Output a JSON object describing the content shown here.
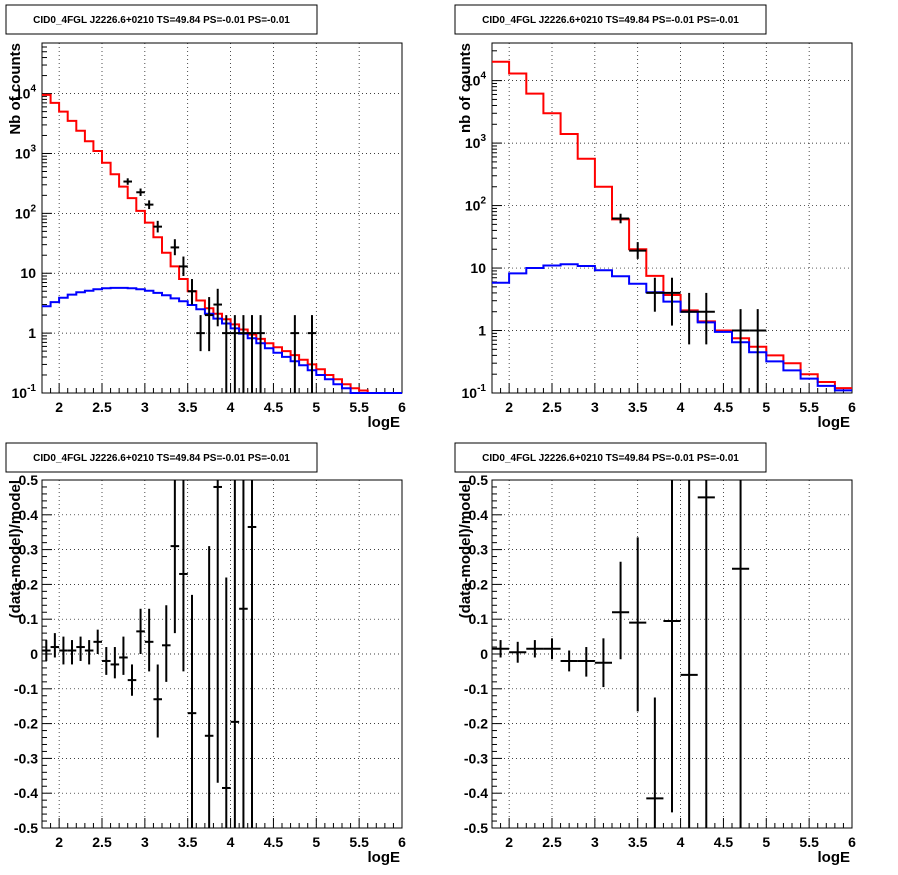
{
  "chart_data": [
    {
      "type": "line",
      "title": "CID0_4FGL J2226.6+0210 TS=49.84 PS=-0.01 PS=-0.01",
      "xlabel": "logE",
      "ylabel": "Nb of counts",
      "xscale": "linear",
      "yscale": "log",
      "xlim": [
        1.8,
        6
      ],
      "ylim": [
        0.1,
        70000
      ],
      "grid": true,
      "xticks": [
        "2",
        "2.5",
        "3",
        "3.5",
        "4",
        "4.5",
        "5",
        "5.5",
        "6"
      ],
      "yticks": [
        "10^-1",
        "1",
        "10",
        "10^2",
        "10^3",
        "10^4"
      ],
      "bin_edges": [
        1.8,
        1.9,
        2.0,
        2.1,
        2.2,
        2.3,
        2.4,
        2.5,
        2.6,
        2.7,
        2.8,
        2.9,
        3.0,
        3.1,
        3.2,
        3.3,
        3.4,
        3.5,
        3.6,
        3.7,
        3.8,
        3.9,
        4.0,
        4.1,
        4.2,
        4.3,
        4.4,
        4.5,
        4.6,
        4.7,
        4.8,
        4.9,
        5.0,
        5.1,
        5.2,
        5.3,
        5.4,
        5.5,
        5.6,
        5.7,
        5.8,
        5.9,
        6.0
      ],
      "series": [
        {
          "color": "#ff0000",
          "style": "step",
          "values": [
            9500,
            7000,
            5000,
            3500,
            2400,
            1600,
            1100,
            700,
            450,
            280,
            180,
            110,
            70,
            40,
            22,
            13,
            8,
            5,
            3.5,
            2.6,
            2.1,
            1.7,
            1.4,
            1.15,
            0.95,
            0.8,
            0.68,
            0.58,
            0.5,
            0.43,
            0.36,
            0.3,
            0.25,
            0.2,
            0.17,
            0.14,
            0.12,
            0.11,
            0.1,
            0.1,
            0.1,
            0.1
          ]
        },
        {
          "color": "#0000ff",
          "style": "step",
          "values": [
            2.8,
            3.3,
            3.9,
            4.4,
            4.8,
            5.1,
            5.4,
            5.6,
            5.7,
            5.7,
            5.6,
            5.4,
            5.1,
            4.7,
            4.3,
            3.8,
            3.4,
            2.95,
            2.5,
            2.1,
            1.75,
            1.45,
            1.2,
            0.98,
            0.82,
            0.68,
            0.56,
            0.47,
            0.4,
            0.34,
            0.29,
            0.24,
            0.2,
            0.17,
            0.14,
            0.12,
            0.1,
            0.1,
            0.1,
            0.1,
            0.1,
            0.1
          ]
        }
      ],
      "points": [
        {
          "x": 2.8,
          "xerr": 0.05,
          "y": 340,
          "ylo": 300,
          "yhi": 385
        },
        {
          "x": 2.95,
          "xerr": 0.05,
          "y": 225,
          "ylo": 195,
          "yhi": 260
        },
        {
          "x": 3.05,
          "xerr": 0.05,
          "y": 140,
          "ylo": 118,
          "yhi": 165
        },
        {
          "x": 3.15,
          "xerr": 0.05,
          "y": 60,
          "ylo": 48,
          "yhi": 75
        },
        {
          "x": 3.35,
          "xerr": 0.05,
          "y": 27,
          "ylo": 20,
          "yhi": 37
        },
        {
          "x": 3.45,
          "xerr": 0.05,
          "y": 13,
          "ylo": 9,
          "yhi": 19
        },
        {
          "x": 3.55,
          "xerr": 0.05,
          "y": 5,
          "ylo": 3,
          "yhi": 8
        },
        {
          "x": 3.65,
          "xerr": 0.05,
          "y": 1,
          "ylo": 0.5,
          "yhi": 2
        },
        {
          "x": 3.75,
          "xerr": 0.05,
          "y": 2,
          "ylo": 0.5,
          "yhi": 4
        },
        {
          "x": 3.85,
          "xerr": 0.05,
          "y": 3,
          "ylo": 1.3,
          "yhi": 5.5
        },
        {
          "x": 3.95,
          "xerr": 0.05,
          "y": 1,
          "ylo": 0.1,
          "yhi": 2
        },
        {
          "x": 4.05,
          "xerr": 0.05,
          "y": 1,
          "ylo": 0.1,
          "yhi": 2
        },
        {
          "x": 4.15,
          "xerr": 0.05,
          "y": 1,
          "ylo": 0.1,
          "yhi": 2
        },
        {
          "x": 4.25,
          "xerr": 0.05,
          "y": 1,
          "ylo": 0.1,
          "yhi": 2
        },
        {
          "x": 4.35,
          "xerr": 0.05,
          "y": 1,
          "ylo": 0.1,
          "yhi": 2
        },
        {
          "x": 4.75,
          "xerr": 0.05,
          "y": 1,
          "ylo": 0.1,
          "yhi": 2
        },
        {
          "x": 4.95,
          "xerr": 0.05,
          "y": 1,
          "ylo": 0.1,
          "yhi": 2
        }
      ]
    },
    {
      "type": "line",
      "title": "CID0_4FGL J2226.6+0210 TS=49.84 PS=-0.01 PS=-0.01",
      "xlabel": "logE",
      "ylabel": "nb of counts",
      "xscale": "linear",
      "yscale": "log",
      "xlim": [
        1.8,
        6
      ],
      "ylim": [
        0.1,
        40000
      ],
      "grid": true,
      "xticks": [
        "2",
        "2.5",
        "3",
        "3.5",
        "4",
        "4.5",
        "5",
        "5.5",
        "6"
      ],
      "yticks": [
        "10^-1",
        "1",
        "10",
        "10^2",
        "10^3",
        "10^4"
      ],
      "bin_edges": [
        1.8,
        2.0,
        2.2,
        2.4,
        2.6,
        2.8,
        3.0,
        3.2,
        3.4,
        3.6,
        3.8,
        4.0,
        4.2,
        4.4,
        4.6,
        4.8,
        5.0,
        5.2,
        5.4,
        5.6,
        5.8,
        6.0
      ],
      "series": [
        {
          "color": "#ff0000",
          "style": "step",
          "values": [
            20000,
            13000,
            6200,
            3000,
            1400,
            560,
            200,
            60,
            20,
            7.5,
            3.7,
            2.1,
            1.4,
            1.0,
            0.75,
            0.55,
            0.4,
            0.3,
            0.2,
            0.15,
            0.12
          ]
        },
        {
          "color": "#0000ff",
          "style": "step",
          "values": [
            5.8,
            8.2,
            10,
            11,
            11.5,
            10.8,
            9.2,
            7.4,
            5.6,
            4.1,
            2.9,
            2.0,
            1.35,
            0.95,
            0.65,
            0.45,
            0.32,
            0.23,
            0.17,
            0.13,
            0.11
          ]
        }
      ],
      "points": [
        {
          "x": 3.3,
          "xerr": 0.1,
          "y": 62,
          "ylo": 52,
          "yhi": 74
        },
        {
          "x": 3.5,
          "xerr": 0.1,
          "y": 19,
          "ylo": 14,
          "yhi": 26
        },
        {
          "x": 3.7,
          "xerr": 0.1,
          "y": 4,
          "ylo": 2,
          "yhi": 7
        },
        {
          "x": 3.9,
          "xerr": 0.1,
          "y": 4,
          "ylo": 1.2,
          "yhi": 7
        },
        {
          "x": 4.1,
          "xerr": 0.1,
          "y": 2,
          "ylo": 0.6,
          "yhi": 4
        },
        {
          "x": 4.3,
          "xerr": 0.1,
          "y": 2,
          "ylo": 0.6,
          "yhi": 4
        },
        {
          "x": 4.7,
          "xerr": 0.1,
          "y": 1,
          "ylo": 0.1,
          "yhi": 2.2
        },
        {
          "x": 4.9,
          "xerr": 0.1,
          "y": 1,
          "ylo": 0.1,
          "yhi": 2.2
        }
      ]
    },
    {
      "type": "scatter",
      "title": "CID0_4FGL J2226.6+0210 TS=49.84 PS=-0.01 PS=-0.01",
      "xlabel": "logE",
      "ylabel": "(data-model)/model",
      "xscale": "linear",
      "yscale": "linear",
      "xlim": [
        1.8,
        6
      ],
      "ylim": [
        -0.5,
        0.5
      ],
      "grid": true,
      "xticks": [
        "2",
        "2.5",
        "3",
        "3.5",
        "4",
        "4.5",
        "5",
        "5.5",
        "6"
      ],
      "yticks": [
        "-0.5",
        "-0.4",
        "-0.3",
        "-0.2",
        "-0.1",
        "0",
        "0.1",
        "0.2",
        "0.3",
        "0.4",
        "0.5"
      ],
      "points": [
        {
          "x": 1.85,
          "xerr": 0.05,
          "y": 0.01,
          "ylo": -0.02,
          "yhi": 0.04
        },
        {
          "x": 1.95,
          "xerr": 0.05,
          "y": 0.02,
          "ylo": -0.01,
          "yhi": 0.06
        },
        {
          "x": 2.05,
          "xerr": 0.05,
          "y": 0.01,
          "ylo": -0.03,
          "yhi": 0.05
        },
        {
          "x": 2.15,
          "xerr": 0.05,
          "y": 0.01,
          "ylo": -0.03,
          "yhi": 0.04
        },
        {
          "x": 2.25,
          "xerr": 0.05,
          "y": 0.02,
          "ylo": -0.02,
          "yhi": 0.05
        },
        {
          "x": 2.35,
          "xerr": 0.05,
          "y": 0.01,
          "ylo": -0.03,
          "yhi": 0.04
        },
        {
          "x": 2.45,
          "xerr": 0.05,
          "y": 0.035,
          "ylo": 0.0,
          "yhi": 0.07
        },
        {
          "x": 2.55,
          "xerr": 0.05,
          "y": -0.02,
          "ylo": -0.06,
          "yhi": 0.02
        },
        {
          "x": 2.65,
          "xerr": 0.05,
          "y": -0.03,
          "ylo": -0.07,
          "yhi": 0.02
        },
        {
          "x": 2.75,
          "xerr": 0.05,
          "y": -0.01,
          "ylo": -0.06,
          "yhi": 0.05
        },
        {
          "x": 2.85,
          "xerr": 0.05,
          "y": -0.075,
          "ylo": -0.12,
          "yhi": -0.03
        },
        {
          "x": 2.95,
          "xerr": 0.05,
          "y": 0.065,
          "ylo": 0.0,
          "yhi": 0.13
        },
        {
          "x": 3.05,
          "xerr": 0.05,
          "y": 0.035,
          "ylo": -0.05,
          "yhi": 0.13
        },
        {
          "x": 3.15,
          "xerr": 0.05,
          "y": -0.13,
          "ylo": -0.24,
          "yhi": -0.03
        },
        {
          "x": 3.25,
          "xerr": 0.05,
          "y": 0.025,
          "ylo": -0.08,
          "yhi": 0.14
        },
        {
          "x": 3.35,
          "xerr": 0.05,
          "y": 0.31,
          "ylo": 0.06,
          "yhi": 0.5
        },
        {
          "x": 3.45,
          "xerr": 0.05,
          "y": 0.23,
          "ylo": -0.05,
          "yhi": 0.5
        },
        {
          "x": 3.55,
          "xerr": 0.05,
          "y": -0.17,
          "ylo": -0.5,
          "yhi": 0.17
        },
        {
          "x": 3.75,
          "xerr": 0.05,
          "y": -0.235,
          "ylo": -0.5,
          "yhi": 0.31
        },
        {
          "x": 3.85,
          "xerr": 0.05,
          "y": 0.48,
          "ylo": -0.37,
          "yhi": 0.5
        },
        {
          "x": 3.95,
          "xerr": 0.05,
          "y": -0.385,
          "ylo": -0.5,
          "yhi": 0.22
        },
        {
          "x": 4.05,
          "xerr": 0.05,
          "y": -0.195,
          "ylo": -0.5,
          "yhi": 0.5
        },
        {
          "x": 4.15,
          "xerr": 0.05,
          "y": 0.13,
          "ylo": -0.5,
          "yhi": 0.5
        },
        {
          "x": 4.25,
          "xerr": 0.05,
          "y": 0.365,
          "ylo": -0.5,
          "yhi": 0.5
        }
      ]
    },
    {
      "type": "scatter",
      "title": "CID0_4FGL J2226.6+0210 TS=49.84 PS=-0.01 PS=-0.01",
      "xlabel": "logE",
      "ylabel": "(data-model)/model",
      "xscale": "linear",
      "yscale": "linear",
      "xlim": [
        1.8,
        6
      ],
      "ylim": [
        -0.5,
        0.5
      ],
      "grid": true,
      "xticks": [
        "2",
        "2.5",
        "3",
        "3.5",
        "4",
        "4.5",
        "5",
        "5.5",
        "6"
      ],
      "yticks": [
        "-0.5",
        "-0.4",
        "-0.3",
        "-0.2",
        "-0.1",
        "0",
        "0.1",
        "0.2",
        "0.3",
        "0.4",
        "0.5"
      ],
      "points": [
        {
          "x": 1.9,
          "xerr": 0.1,
          "y": 0.015,
          "ylo": -0.01,
          "yhi": 0.04
        },
        {
          "x": 2.1,
          "xerr": 0.1,
          "y": 0.005,
          "ylo": -0.025,
          "yhi": 0.035
        },
        {
          "x": 2.3,
          "xerr": 0.1,
          "y": 0.015,
          "ylo": -0.01,
          "yhi": 0.04
        },
        {
          "x": 2.5,
          "xerr": 0.1,
          "y": 0.015,
          "ylo": -0.015,
          "yhi": 0.045
        },
        {
          "x": 2.7,
          "xerr": 0.1,
          "y": -0.02,
          "ylo": -0.05,
          "yhi": 0.01
        },
        {
          "x": 2.9,
          "xerr": 0.1,
          "y": -0.02,
          "ylo": -0.065,
          "yhi": 0.02
        },
        {
          "x": 3.1,
          "xerr": 0.1,
          "y": -0.025,
          "ylo": -0.095,
          "yhi": 0.045
        },
        {
          "x": 3.3,
          "xerr": 0.1,
          "y": 0.12,
          "ylo": -0.015,
          "yhi": 0.265
        },
        {
          "x": 3.5,
          "xerr": 0.1,
          "y": 0.09,
          "ylo": -0.165,
          "yhi": 0.335
        },
        {
          "x": 3.7,
          "xerr": 0.1,
          "y": -0.415,
          "ylo": -0.5,
          "yhi": -0.125
        },
        {
          "x": 3.9,
          "xerr": 0.1,
          "y": 0.095,
          "ylo": -0.455,
          "yhi": 0.5
        },
        {
          "x": 4.1,
          "xerr": 0.1,
          "y": -0.06,
          "ylo": -0.5,
          "yhi": 0.5
        },
        {
          "x": 4.3,
          "xerr": 0.1,
          "y": 0.45,
          "ylo": -0.5,
          "yhi": 0.5
        },
        {
          "x": 4.7,
          "xerr": 0.1,
          "y": 0.245,
          "ylo": -0.5,
          "yhi": 0.5
        }
      ]
    }
  ]
}
